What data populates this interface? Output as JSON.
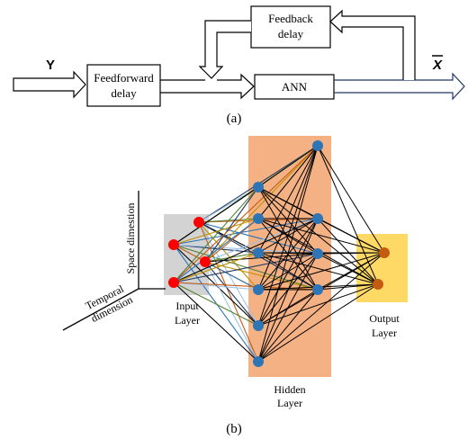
{
  "part_a": {
    "input_label": "Y",
    "output_label": "X",
    "feedforward_label": [
      "Feedforward",
      "delay"
    ],
    "feedback_label": [
      "Feedback",
      "delay"
    ],
    "ann_label": "ANN",
    "caption": "(a)"
  },
  "part_b": {
    "axis_space_label": "Space dimestion",
    "axis_temporal_label": [
      "Temporal",
      "dimension"
    ],
    "input_layer_label": [
      "Input",
      "Layer"
    ],
    "hidden_layer_label": [
      "Hidden",
      "Layer"
    ],
    "output_layer_label": [
      "Output",
      "Layer"
    ],
    "caption": "(b)",
    "colors": {
      "input_panel": "#d3d3d3",
      "hidden_panel": "#f4b183",
      "output_panel": "#ffd966",
      "input_node": "#ff0000",
      "hidden_node": "#2e75b6",
      "output_node": "#c55a11",
      "ann_output_arrow": "#1f3864",
      "connection_palette": [
        "#1f3864",
        "#9dc3e6",
        "#c55a11",
        "#548235",
        "#000000",
        "#2e75b6",
        "#bf9000"
      ]
    }
  }
}
